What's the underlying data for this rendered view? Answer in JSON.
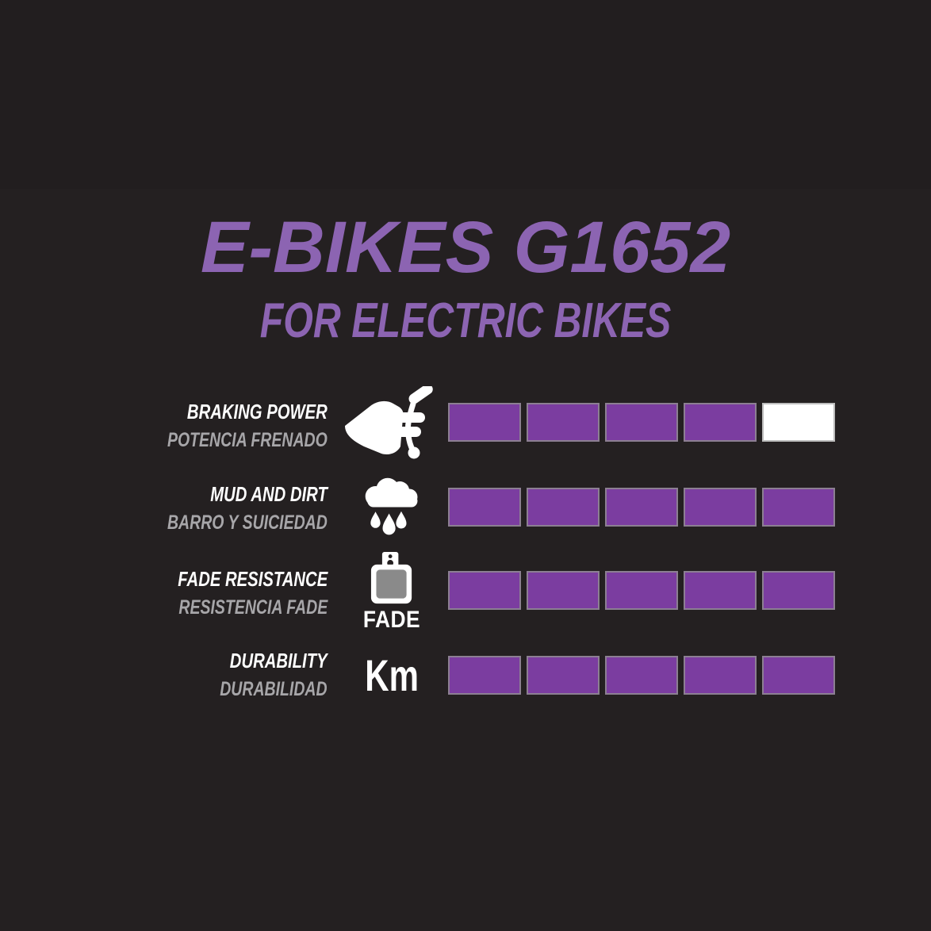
{
  "title": "E-BIKES G1652",
  "subtitle": "FOR ELECTRIC BIKES",
  "colors": {
    "background": "#242021",
    "accent_purple": "#8c64b2",
    "bar_fill_purple": "#7b3da0",
    "bar_border": "#8c7f92",
    "bar_empty": "#ffffff",
    "label_primary": "#ffffff",
    "label_secondary": "#a7a6a9",
    "pad_inner_gray": "#8a8a8a"
  },
  "ratings": {
    "scale_max": 5,
    "rows": [
      {
        "label_en": "BRAKING POWER",
        "label_es": "POTENCIA FRENADO",
        "icon": "brake-lever-hand-icon",
        "value": 4
      },
      {
        "label_en": "MUD AND DIRT",
        "label_es": "BARRO Y SUICIEDAD",
        "icon": "rain-cloud-icon",
        "value": 5
      },
      {
        "label_en": "FADE RESISTANCE",
        "label_es": "RESISTENCIA FADE",
        "icon": "brake-pad-icon",
        "icon_caption": "FADE",
        "value": 5
      },
      {
        "label_en": "DURABILITY",
        "label_es": "DURABILIDAD",
        "icon": "km-text-icon",
        "icon_text": "Km",
        "value": 5
      }
    ]
  },
  "chart_data": {
    "type": "bar",
    "title": "E-BIKES G1652",
    "subtitle": "FOR ELECTRIC BIKES",
    "categories": [
      "BRAKING POWER / POTENCIA FRENADO",
      "MUD AND DIRT / BARRO Y SUICIEDAD",
      "FADE RESISTANCE / RESISTENCIA FADE",
      "DURABILITY / DURABILIDAD"
    ],
    "values": [
      4,
      5,
      5,
      5
    ],
    "xlabel": "",
    "ylabel": "rating (filled segments of 5)",
    "ylim": [
      0,
      5
    ],
    "legend": "none",
    "grid": false
  }
}
